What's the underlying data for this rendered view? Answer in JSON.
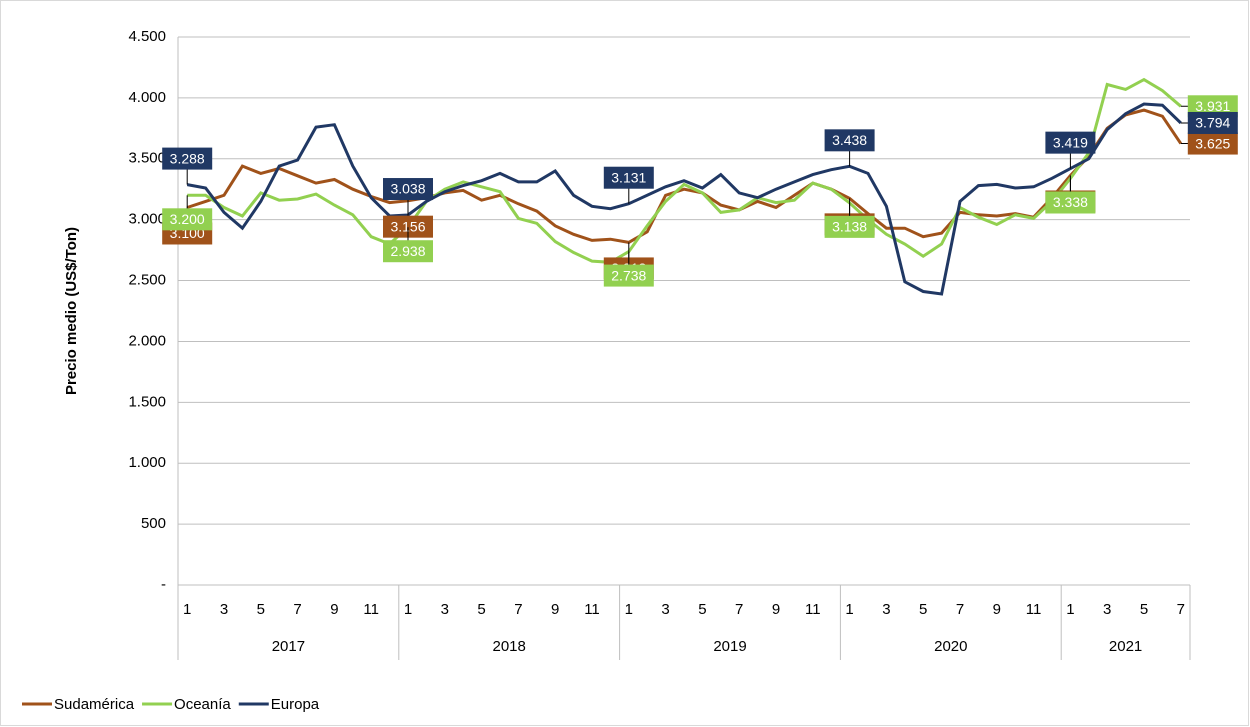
{
  "chart_data": {
    "type": "line",
    "y_label": "Precio medio (US$/Ton)",
    "categories": [
      1,
      null,
      3,
      null,
      5,
      null,
      7,
      null,
      9,
      null,
      11,
      null,
      1,
      null,
      3,
      null,
      5,
      null,
      7,
      null,
      9,
      null,
      11,
      null,
      1,
      null,
      3,
      null,
      5,
      null,
      7,
      null,
      9,
      null,
      11,
      null,
      1,
      null,
      3,
      null,
      5,
      null,
      7,
      null,
      9,
      null,
      11,
      null,
      1,
      null,
      3,
      null,
      5,
      null,
      7
    ],
    "years": [
      "2017",
      "2018",
      "2019",
      "2020",
      "2021"
    ],
    "ylim": [
      0,
      4500
    ],
    "yticks": [
      {
        "value": 0,
        "label": "-"
      },
      500,
      {
        "value": 1000,
        "label": "1.000"
      },
      {
        "value": 1500,
        "label": "1.500"
      },
      {
        "value": 2000,
        "label": "2.000"
      },
      {
        "value": 2500,
        "label": "2.500"
      },
      {
        "value": 3000,
        "label": "3.000"
      },
      {
        "value": 3500,
        "label": "3.500"
      },
      {
        "value": 4000,
        "label": "4.000"
      },
      {
        "value": 4500,
        "label": "4.500"
      }
    ],
    "grid": true,
    "legend": "bottom-left",
    "series": [
      {
        "name": "Sudamérica",
        "color": "#a0521a",
        "values": [
          3100,
          3150,
          3200,
          3440,
          3380,
          3420,
          3360,
          3300,
          3330,
          3250,
          3190,
          3140,
          3156,
          3180,
          3220,
          3240,
          3160,
          3200,
          3130,
          3070,
          2950,
          2880,
          2830,
          2840,
          2813,
          2900,
          3200,
          3250,
          3220,
          3120,
          3080,
          3150,
          3100,
          3200,
          3300,
          3250,
          3175,
          3050,
          2930,
          2930,
          2860,
          2890,
          3060,
          3040,
          3030,
          3050,
          3020,
          3180,
          3363,
          3520,
          3750,
          3860,
          3900,
          3850,
          3625
        ],
        "value_labels": [
          "3.100",
          null,
          null,
          null,
          null,
          null,
          null,
          null,
          null,
          null,
          null,
          null,
          "3.156",
          null,
          null,
          null,
          null,
          null,
          null,
          null,
          null,
          null,
          null,
          null,
          "2.813",
          null,
          null,
          null,
          null,
          null,
          null,
          null,
          null,
          null,
          null,
          null,
          "3.175",
          null,
          null,
          null,
          null,
          null,
          null,
          null,
          null,
          null,
          null,
          null,
          "3.363",
          null,
          null,
          null,
          null,
          null,
          "3.625"
        ]
      },
      {
        "name": "Oceanía",
        "color": "#92d050",
        "values": [
          3200,
          3200,
          3100,
          3030,
          3220,
          3160,
          3170,
          3210,
          3120,
          3040,
          2860,
          2800,
          2938,
          3150,
          3250,
          3310,
          3270,
          3230,
          3010,
          2970,
          2820,
          2730,
          2660,
          2650,
          2738,
          2950,
          3150,
          3290,
          3220,
          3060,
          3080,
          3180,
          3140,
          3160,
          3300,
          3250,
          3138,
          3000,
          2880,
          2800,
          2700,
          2800,
          3100,
          3020,
          2960,
          3040,
          3010,
          3150,
          3338,
          3550,
          4110,
          4070,
          4150,
          4060,
          3931
        ],
        "value_labels": [
          "3.200",
          null,
          null,
          null,
          null,
          null,
          null,
          null,
          null,
          null,
          null,
          null,
          "2.938",
          null,
          null,
          null,
          null,
          null,
          null,
          null,
          null,
          null,
          null,
          null,
          "2.738",
          null,
          null,
          null,
          null,
          null,
          null,
          null,
          null,
          null,
          null,
          null,
          "3.138",
          null,
          null,
          null,
          null,
          null,
          null,
          null,
          null,
          null,
          null,
          null,
          "3.338",
          null,
          null,
          null,
          null,
          null,
          "3.931"
        ]
      },
      {
        "name": "Europa",
        "color": "#203864",
        "values": [
          3288,
          3260,
          3060,
          2930,
          3150,
          3440,
          3490,
          3760,
          3780,
          3440,
          3180,
          3030,
          3038,
          3150,
          3230,
          3280,
          3320,
          3380,
          3310,
          3310,
          3400,
          3200,
          3110,
          3090,
          3131,
          3200,
          3270,
          3320,
          3260,
          3370,
          3220,
          3180,
          3250,
          3310,
          3370,
          3410,
          3438,
          3380,
          3110,
          2490,
          2410,
          2390,
          3150,
          3280,
          3290,
          3260,
          3270,
          3340,
          3419,
          3500,
          3740,
          3870,
          3950,
          3940,
          3794
        ],
        "value_labels": [
          "3.288",
          null,
          null,
          null,
          null,
          null,
          null,
          null,
          null,
          null,
          null,
          null,
          "3.038",
          null,
          null,
          null,
          null,
          null,
          null,
          null,
          null,
          null,
          null,
          null,
          "3.131",
          null,
          null,
          null,
          null,
          null,
          null,
          null,
          null,
          null,
          null,
          null,
          "3.438",
          null,
          null,
          null,
          null,
          null,
          null,
          null,
          null,
          null,
          null,
          null,
          "3.419",
          null,
          null,
          null,
          null,
          null,
          "3.794"
        ]
      }
    ]
  }
}
